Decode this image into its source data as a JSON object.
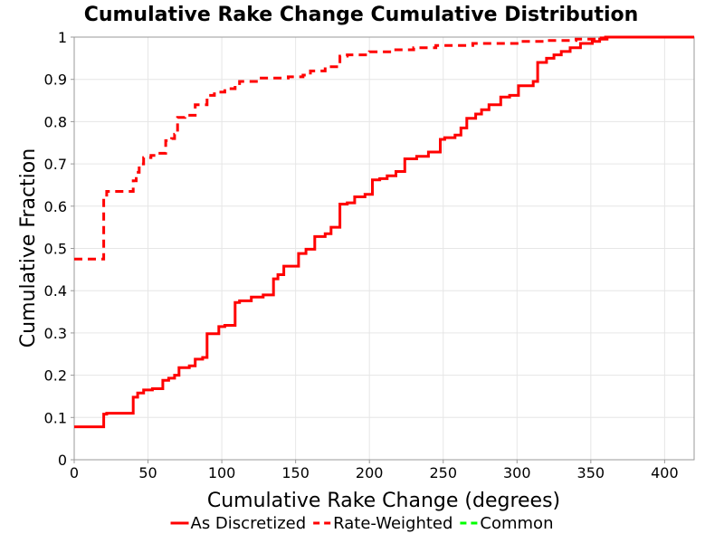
{
  "chart_data": {
    "type": "line",
    "title": "Cumulative Rake Change Cumulative Distribution",
    "xlabel": "Cumulative Rake Change (degrees)",
    "ylabel": "Cumulative Fraction",
    "xlim": [
      0,
      420
    ],
    "ylim": [
      0,
      1
    ],
    "x_ticks": [
      0,
      50,
      100,
      150,
      200,
      250,
      300,
      350,
      400
    ],
    "y_ticks": [
      0,
      0.1,
      0.2,
      0.3,
      0.4,
      0.5,
      0.6,
      0.7,
      0.8,
      0.9,
      1
    ],
    "y_tick_labels": [
      "0",
      "0.1",
      "0.2",
      "0.3",
      "0.4",
      "0.5",
      "0.6",
      "0.7",
      "0.8",
      "0.9",
      "1"
    ],
    "grid": true,
    "legend_position": "bottom",
    "series": [
      {
        "name": "As Discretized",
        "color": "#ff0000",
        "dash": "solid",
        "x": [
          0,
          20,
          22,
          40,
          43,
          47,
          53,
          60,
          64,
          68,
          71,
          78,
          82,
          87,
          90,
          98,
          102,
          109,
          112,
          120,
          128,
          135,
          138,
          142,
          152,
          157,
          163,
          170,
          174,
          180,
          185,
          190,
          197,
          202,
          207,
          212,
          218,
          224,
          232,
          240,
          248,
          251,
          258,
          262,
          266,
          272,
          276,
          281,
          289,
          295,
          301,
          311,
          314,
          320,
          325,
          330,
          336,
          343,
          351,
          356,
          361,
          420
        ],
        "y": [
          0.078,
          0.108,
          0.11,
          0.148,
          0.158,
          0.165,
          0.168,
          0.188,
          0.193,
          0.2,
          0.218,
          0.222,
          0.238,
          0.242,
          0.298,
          0.315,
          0.318,
          0.372,
          0.376,
          0.385,
          0.39,
          0.428,
          0.438,
          0.458,
          0.488,
          0.498,
          0.528,
          0.535,
          0.55,
          0.605,
          0.608,
          0.622,
          0.628,
          0.662,
          0.665,
          0.672,
          0.682,
          0.712,
          0.718,
          0.728,
          0.758,
          0.762,
          0.768,
          0.785,
          0.808,
          0.818,
          0.828,
          0.84,
          0.858,
          0.862,
          0.885,
          0.895,
          0.94,
          0.95,
          0.958,
          0.966,
          0.975,
          0.985,
          0.99,
          0.995,
          1.0,
          1.0
        ]
      },
      {
        "name": "Rate-Weighted",
        "color": "#ff0000",
        "dash": "dashed",
        "x": [
          0,
          20,
          22,
          40,
          42,
          44,
          47,
          52,
          55,
          62,
          66,
          68,
          70,
          75,
          82,
          90,
          95,
          102,
          109,
          112,
          125,
          145,
          155,
          160,
          170,
          180,
          185,
          200,
          215,
          230,
          245,
          270,
          300,
          320,
          340,
          355,
          360,
          420
        ],
        "y": [
          0.475,
          0.62,
          0.635,
          0.66,
          0.68,
          0.7,
          0.715,
          0.72,
          0.725,
          0.755,
          0.76,
          0.77,
          0.81,
          0.815,
          0.84,
          0.862,
          0.87,
          0.878,
          0.89,
          0.895,
          0.903,
          0.906,
          0.91,
          0.92,
          0.93,
          0.955,
          0.958,
          0.965,
          0.97,
          0.975,
          0.98,
          0.985,
          0.99,
          0.992,
          0.995,
          0.998,
          1.0,
          1.0
        ]
      },
      {
        "name": "Common",
        "color": "#00ff00",
        "dash": "dashed",
        "x": [],
        "y": []
      }
    ]
  }
}
